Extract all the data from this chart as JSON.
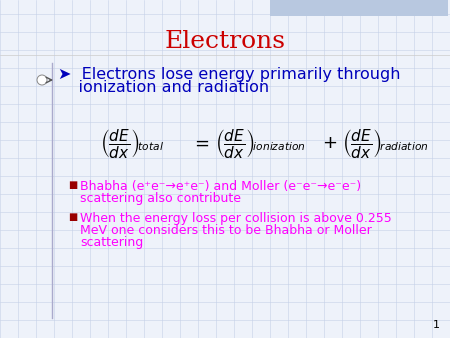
{
  "title": "Electrons",
  "title_color": "#CC0000",
  "title_fontsize": 18,
  "background_color": "#EEF2FA",
  "bullet_color": "#FF00FF",
  "header_color": "#0000BB",
  "header_line1": "➤  Electrons lose energy primarily through",
  "header_line2": "    ionization and radiation",
  "header_fontsize": 11.5,
  "bullet1_line1": "Bhabha (e⁺e⁻→e⁺e⁻) and Moller (e⁻e⁻→e⁻e⁻)",
  "bullet1_line2": "scattering also contribute",
  "bullet2_line1": "When the energy loss per collision is above 0.255",
  "bullet2_line2": "MeV one considers this to be Bhabha or Moller",
  "bullet2_line3": "scattering",
  "bullet_fontsize": 9.0,
  "eq_fontsize": 11,
  "page_number": "1",
  "grid_color": "#C5D0E8",
  "slide_bg": "#EAEEF8",
  "top_bar_color": "#B8C8E0"
}
